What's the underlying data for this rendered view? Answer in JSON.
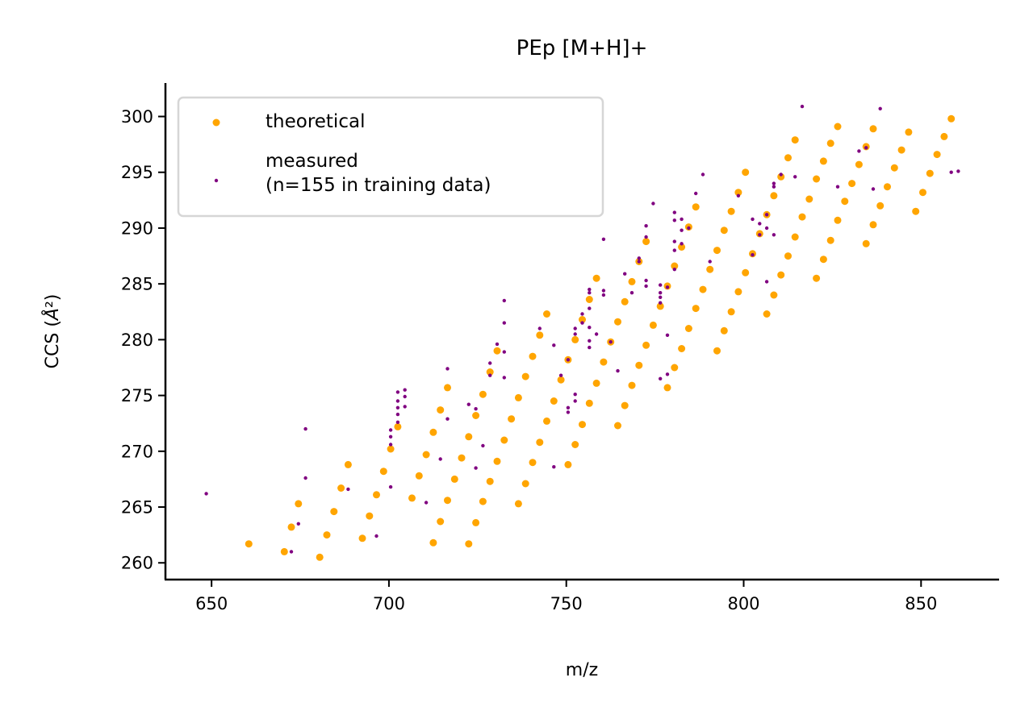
{
  "chart_data": {
    "type": "scatter",
    "title": "PEp [M+H]+",
    "xlabel": "m/z",
    "ylabel": "CCS (Å²)",
    "xlim": [
      637,
      872
    ],
    "ylim": [
      258.5,
      303
    ],
    "xticks": [
      650,
      700,
      750,
      800,
      850
    ],
    "yticks": [
      260,
      265,
      270,
      275,
      280,
      285,
      290,
      295,
      300
    ],
    "grid": false,
    "legend_position": "top-left",
    "series": [
      {
        "name": "theoretical",
        "color": "#FFA500",
        "points": [
          [
            660.5,
            261.7
          ],
          [
            670.5,
            261.0
          ],
          [
            672.5,
            263.2
          ],
          [
            674.5,
            265.3
          ],
          [
            680.5,
            260.5
          ],
          [
            682.5,
            262.5
          ],
          [
            684.5,
            264.6
          ],
          [
            686.5,
            266.7
          ],
          [
            688.5,
            268.8
          ],
          [
            692.5,
            262.2
          ],
          [
            694.5,
            264.2
          ],
          [
            696.5,
            266.1
          ],
          [
            698.5,
            268.2
          ],
          [
            700.5,
            270.2
          ],
          [
            702.5,
            272.2
          ],
          [
            706.5,
            265.8
          ],
          [
            708.5,
            267.8
          ],
          [
            710.5,
            269.7
          ],
          [
            712.5,
            261.8
          ],
          [
            712.5,
            271.7
          ],
          [
            714.5,
            263.7
          ],
          [
            714.5,
            273.7
          ],
          [
            716.5,
            265.6
          ],
          [
            716.5,
            275.7
          ],
          [
            718.5,
            267.5
          ],
          [
            720.5,
            269.4
          ],
          [
            722.5,
            261.7
          ],
          [
            722.5,
            271.3
          ],
          [
            724.5,
            263.6
          ],
          [
            724.5,
            273.2
          ],
          [
            726.5,
            265.5
          ],
          [
            726.5,
            275.1
          ],
          [
            728.5,
            267.3
          ],
          [
            728.5,
            277.1
          ],
          [
            730.5,
            269.1
          ],
          [
            730.5,
            279.0
          ],
          [
            732.5,
            271.0
          ],
          [
            734.5,
            272.9
          ],
          [
            736.5,
            265.3
          ],
          [
            736.5,
            274.8
          ],
          [
            738.5,
            267.1
          ],
          [
            738.5,
            276.7
          ],
          [
            740.5,
            269.0
          ],
          [
            740.5,
            278.5
          ],
          [
            742.5,
            270.8
          ],
          [
            742.5,
            280.4
          ],
          [
            744.5,
            272.7
          ],
          [
            744.5,
            282.3
          ],
          [
            746.5,
            274.5
          ],
          [
            748.5,
            276.4
          ],
          [
            750.5,
            268.8
          ],
          [
            750.5,
            278.2
          ],
          [
            752.5,
            270.6
          ],
          [
            752.5,
            280.0
          ],
          [
            754.5,
            272.4
          ],
          [
            754.5,
            281.8
          ],
          [
            756.5,
            274.3
          ],
          [
            756.5,
            283.6
          ],
          [
            758.5,
            276.1
          ],
          [
            758.5,
            285.5
          ],
          [
            760.5,
            278.0
          ],
          [
            762.5,
            279.8
          ],
          [
            764.5,
            272.3
          ],
          [
            764.5,
            281.6
          ],
          [
            766.5,
            274.1
          ],
          [
            766.5,
            283.4
          ],
          [
            768.5,
            275.9
          ],
          [
            768.5,
            285.2
          ],
          [
            770.5,
            277.7
          ],
          [
            770.5,
            287.0
          ],
          [
            772.5,
            279.5
          ],
          [
            772.5,
            288.8
          ],
          [
            774.5,
            281.3
          ],
          [
            776.5,
            283.0
          ],
          [
            778.5,
            275.7
          ],
          [
            778.5,
            284.8
          ],
          [
            780.5,
            277.5
          ],
          [
            780.5,
            286.6
          ],
          [
            782.5,
            279.2
          ],
          [
            782.5,
            288.3
          ],
          [
            784.5,
            281.0
          ],
          [
            784.5,
            290.1
          ],
          [
            786.5,
            282.8
          ],
          [
            786.5,
            291.9
          ],
          [
            788.5,
            284.5
          ],
          [
            790.5,
            286.3
          ],
          [
            792.5,
            279.0
          ],
          [
            792.5,
            288.0
          ],
          [
            794.5,
            280.8
          ],
          [
            794.5,
            289.8
          ],
          [
            796.5,
            282.5
          ],
          [
            796.5,
            291.5
          ],
          [
            798.5,
            284.3
          ],
          [
            798.5,
            293.2
          ],
          [
            800.5,
            286.0
          ],
          [
            800.5,
            295.0
          ],
          [
            802.5,
            287.7
          ],
          [
            804.5,
            289.5
          ],
          [
            806.5,
            282.3
          ],
          [
            806.5,
            291.2
          ],
          [
            808.5,
            284.0
          ],
          [
            808.5,
            292.9
          ],
          [
            810.5,
            285.8
          ],
          [
            810.5,
            294.6
          ],
          [
            812.5,
            287.5
          ],
          [
            812.5,
            296.3
          ],
          [
            814.5,
            289.2
          ],
          [
            814.5,
            297.9
          ],
          [
            816.5,
            291.0
          ],
          [
            818.5,
            292.6
          ],
          [
            820.5,
            285.5
          ],
          [
            820.5,
            294.4
          ],
          [
            822.5,
            287.2
          ],
          [
            822.5,
            296.0
          ],
          [
            824.5,
            288.9
          ],
          [
            824.5,
            297.6
          ],
          [
            826.5,
            290.7
          ],
          [
            826.5,
            299.1
          ],
          [
            828.5,
            292.4
          ],
          [
            830.5,
            294.0
          ],
          [
            832.5,
            295.7
          ],
          [
            834.5,
            288.6
          ],
          [
            834.5,
            297.3
          ],
          [
            836.5,
            290.3
          ],
          [
            836.5,
            298.9
          ],
          [
            838.5,
            292.0
          ],
          [
            840.5,
            293.7
          ],
          [
            842.5,
            295.4
          ],
          [
            844.5,
            297.0
          ],
          [
            846.5,
            298.6
          ],
          [
            848.5,
            291.5
          ],
          [
            850.5,
            293.2
          ],
          [
            852.5,
            294.9
          ],
          [
            854.5,
            296.6
          ],
          [
            856.5,
            298.2
          ],
          [
            858.5,
            299.8
          ]
        ]
      },
      {
        "name": "measured\n(n=155 in training data)",
        "color": "#800080",
        "points": [
          [
            648.5,
            266.2
          ],
          [
            672.5,
            261.0
          ],
          [
            674.5,
            263.5
          ],
          [
            676.5,
            267.6
          ],
          [
            676.5,
            272.0
          ],
          [
            688.5,
            266.6
          ],
          [
            696.5,
            262.4
          ],
          [
            700.5,
            266.8
          ],
          [
            700.5,
            270.6
          ],
          [
            700.5,
            271.3
          ],
          [
            700.5,
            271.9
          ],
          [
            702.5,
            272.6
          ],
          [
            702.5,
            273.3
          ],
          [
            702.5,
            273.9
          ],
          [
            702.5,
            274.5
          ],
          [
            702.5,
            275.3
          ],
          [
            704.5,
            274.0
          ],
          [
            704.5,
            274.9
          ],
          [
            704.5,
            275.5
          ],
          [
            710.5,
            265.4
          ],
          [
            714.5,
            269.3
          ],
          [
            716.5,
            272.9
          ],
          [
            716.5,
            277.4
          ],
          [
            722.5,
            274.2
          ],
          [
            724.5,
            268.5
          ],
          [
            724.5,
            273.8
          ],
          [
            726.5,
            270.5
          ],
          [
            728.5,
            276.8
          ],
          [
            728.5,
            277.9
          ],
          [
            730.5,
            279.6
          ],
          [
            732.5,
            276.6
          ],
          [
            732.5,
            278.9
          ],
          [
            732.5,
            281.5
          ],
          [
            732.5,
            283.5
          ],
          [
            742.5,
            281.0
          ],
          [
            746.5,
            268.6
          ],
          [
            746.5,
            279.5
          ],
          [
            748.5,
            276.8
          ],
          [
            750.5,
            273.5
          ],
          [
            750.5,
            273.9
          ],
          [
            750.5,
            278.2
          ],
          [
            752.5,
            274.5
          ],
          [
            752.5,
            275.1
          ],
          [
            752.5,
            280.5
          ],
          [
            752.5,
            281.0
          ],
          [
            754.5,
            281.5
          ],
          [
            754.5,
            282.3
          ],
          [
            756.5,
            279.3
          ],
          [
            756.5,
            279.9
          ],
          [
            756.5,
            281.1
          ],
          [
            756.5,
            282.8
          ],
          [
            756.5,
            284.2
          ],
          [
            756.5,
            284.5
          ],
          [
            758.5,
            280.5
          ],
          [
            760.5,
            289.0
          ],
          [
            760.5,
            284.0
          ],
          [
            760.5,
            284.4
          ],
          [
            762.5,
            279.8
          ],
          [
            764.5,
            277.2
          ],
          [
            766.5,
            285.9
          ],
          [
            768.5,
            284.2
          ],
          [
            770.5,
            287.0
          ],
          [
            770.5,
            287.3
          ],
          [
            772.5,
            284.8
          ],
          [
            772.5,
            285.3
          ],
          [
            772.5,
            289.2
          ],
          [
            772.5,
            290.2
          ],
          [
            774.5,
            292.2
          ],
          [
            776.5,
            276.5
          ],
          [
            776.5,
            283.3
          ],
          [
            776.5,
            283.8
          ],
          [
            776.5,
            284.2
          ],
          [
            776.5,
            284.9
          ],
          [
            778.5,
            276.9
          ],
          [
            778.5,
            280.4
          ],
          [
            778.5,
            284.7
          ],
          [
            780.5,
            286.3
          ],
          [
            780.5,
            288.0
          ],
          [
            780.5,
            288.8
          ],
          [
            780.5,
            290.7
          ],
          [
            780.5,
            291.4
          ],
          [
            782.5,
            288.6
          ],
          [
            782.5,
            289.8
          ],
          [
            782.5,
            290.8
          ],
          [
            784.5,
            290.0
          ],
          [
            786.5,
            293.1
          ],
          [
            788.5,
            294.8
          ],
          [
            790.5,
            287.0
          ],
          [
            798.5,
            292.9
          ],
          [
            802.5,
            287.6
          ],
          [
            802.5,
            290.8
          ],
          [
            804.5,
            290.4
          ],
          [
            804.5,
            289.4
          ],
          [
            806.5,
            285.2
          ],
          [
            806.5,
            290.0
          ],
          [
            806.5,
            291.2
          ],
          [
            808.5,
            289.4
          ],
          [
            808.5,
            293.7
          ],
          [
            808.5,
            294.0
          ],
          [
            810.5,
            294.8
          ],
          [
            814.5,
            294.6
          ],
          [
            816.5,
            300.9
          ],
          [
            826.5,
            293.7
          ],
          [
            832.5,
            296.9
          ],
          [
            834.5,
            297.2
          ],
          [
            836.5,
            293.5
          ],
          [
            838.5,
            300.7
          ],
          [
            858.5,
            295.0
          ],
          [
            860.5,
            295.1
          ]
        ]
      }
    ]
  }
}
